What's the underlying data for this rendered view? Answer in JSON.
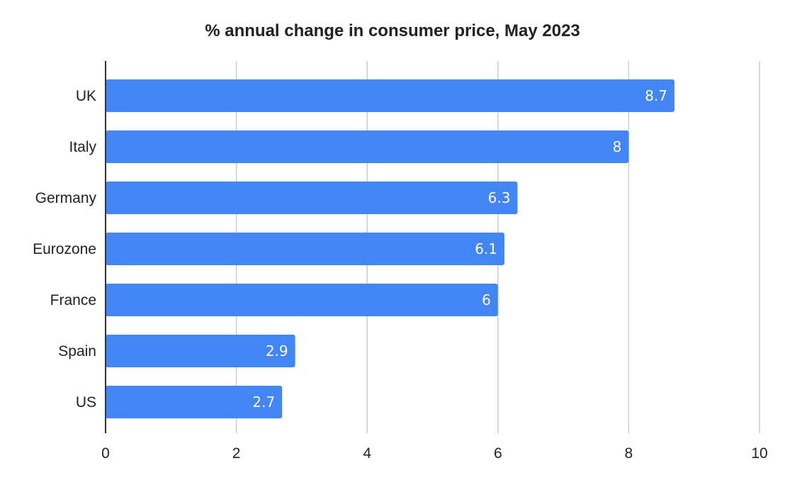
{
  "chart_data": {
    "type": "bar",
    "orientation": "horizontal",
    "title": "% annual change in consumer price, May 2023",
    "xlabel": "",
    "ylabel": "",
    "categories": [
      "UK",
      "Italy",
      "Germany",
      "Eurozone",
      "France",
      "Spain",
      "US"
    ],
    "values": [
      8.7,
      8,
      6.3,
      6.1,
      6,
      2.9,
      2.7
    ],
    "data_labels": [
      "8.7",
      "8",
      "6.3",
      "6.1",
      "6",
      "2.9",
      "2.7"
    ],
    "xlim": [
      0,
      10
    ],
    "x_ticks": [
      0,
      2,
      4,
      6,
      8,
      10
    ],
    "x_tick_labels": [
      "0",
      "2",
      "4",
      "6",
      "8",
      "10"
    ],
    "grid": true,
    "legend": "none",
    "colors": {
      "bar": "#4285f4",
      "grid": "#cccccc",
      "axis": "#333333"
    }
  }
}
